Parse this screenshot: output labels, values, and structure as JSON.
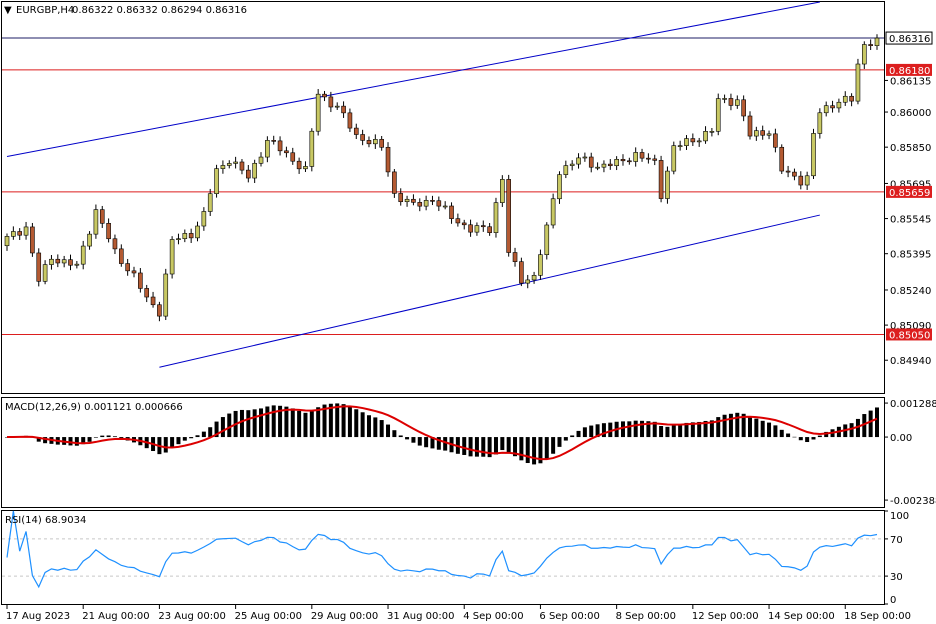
{
  "header": {
    "symbol_timeframe": "EURGBP,H4",
    "ohlc": "0.86322 0.86332 0.86294 0.86316"
  },
  "colors": {
    "bull": "#c8c864",
    "bear": "#b45a32",
    "candle_outline": "#000000",
    "channel": "#0000c8",
    "hline": "#dc1e1e",
    "bid_line": "#1e1e64",
    "macd_hist": "#000000",
    "macd_signal": "#dc0000",
    "rsi": "#1e90ff",
    "level_dash": "#c8c8c8"
  },
  "chart_data": [
    {
      "type": "candlestick",
      "title": "EURGBP,H4",
      "price_ticks": [
        "0.86180",
        "0.86135",
        "0.86000",
        "0.85850",
        "0.85695",
        "0.85659",
        "0.85545",
        "0.85395",
        "0.85240",
        "0.85090",
        "0.85050",
        "0.84940"
      ],
      "price_range": [
        0.848,
        0.8647
      ],
      "price_ticks_values": [
        0.86135,
        0.86,
        0.8585,
        0.85695,
        0.85545,
        0.85395,
        0.8524,
        0.8509,
        0.8494
      ],
      "current_price": {
        "label": "0.86316",
        "value": 0.86316
      },
      "horizontal_levels": [
        {
          "label": "0.86180",
          "value": 0.8618
        },
        {
          "label": "0.85659",
          "value": 0.85659
        },
        {
          "label": "0.85050",
          "value": 0.8505
        }
      ],
      "channel_lines": [
        {
          "from": {
            "bar": 0,
            "price": 0.8581
          },
          "to": {
            "bar": 128,
            "price": 0.8647
          }
        },
        {
          "from": {
            "bar": 24,
            "price": 0.8491
          },
          "to": {
            "bar": 128,
            "price": 0.8556
          }
        }
      ],
      "x_labels": [
        {
          "bar": 0,
          "label": "17 Aug 2023"
        },
        {
          "bar": 12,
          "label": "21 Aug 00:00"
        },
        {
          "bar": 24,
          "label": "23 Aug 00:00"
        },
        {
          "bar": 36,
          "label": "25 Aug 00:00"
        },
        {
          "bar": 48,
          "label": "29 Aug 00:00"
        },
        {
          "bar": 60,
          "label": "31 Aug 00:00"
        },
        {
          "bar": 72,
          "label": "4 Sep 00:00"
        },
        {
          "bar": 84,
          "label": "6 Sep 00:00"
        },
        {
          "bar": 96,
          "label": "8 Sep 00:00"
        },
        {
          "bar": 108,
          "label": "12 Sep 00:00"
        },
        {
          "bar": 120,
          "label": "14 Sep 00:00"
        },
        {
          "bar": 132,
          "label": "18 Sep 00:00"
        }
      ],
      "bar_count": 138,
      "anchors": [
        [
          0,
          0.8546
        ],
        [
          3,
          0.8551
        ],
        [
          5,
          0.8528
        ],
        [
          7,
          0.8538
        ],
        [
          11,
          0.8534
        ],
        [
          14,
          0.8558
        ],
        [
          17,
          0.854
        ],
        [
          20,
          0.853
        ],
        [
          22,
          0.852
        ],
        [
          24,
          0.8515
        ],
        [
          26,
          0.8545
        ],
        [
          29,
          0.8548
        ],
        [
          31,
          0.8556
        ],
        [
          33,
          0.8575
        ],
        [
          35,
          0.858
        ],
        [
          38,
          0.8572
        ],
        [
          41,
          0.8588
        ],
        [
          44,
          0.8582
        ],
        [
          47,
          0.8575
        ],
        [
          49,
          0.8608
        ],
        [
          52,
          0.8602
        ],
        [
          55,
          0.859
        ],
        [
          59,
          0.8585
        ],
        [
          61,
          0.8565
        ],
        [
          64,
          0.856
        ],
        [
          67,
          0.8563
        ],
        [
          70,
          0.8555
        ],
        [
          73,
          0.855
        ],
        [
          76,
          0.855
        ],
        [
          78,
          0.8572
        ],
        [
          79,
          0.854
        ],
        [
          81,
          0.8528
        ],
        [
          83,
          0.853
        ],
        [
          85,
          0.855
        ],
        [
          87,
          0.8575
        ],
        [
          90,
          0.858
        ],
        [
          93,
          0.8577
        ],
        [
          96,
          0.8578
        ],
        [
          99,
          0.8582
        ],
        [
          102,
          0.8578
        ],
        [
          103,
          0.8565
        ],
        [
          105,
          0.8585
        ],
        [
          108,
          0.8588
        ],
        [
          111,
          0.8592
        ],
        [
          112,
          0.8605
        ],
        [
          115,
          0.8605
        ],
        [
          117,
          0.859
        ],
        [
          120,
          0.8592
        ],
        [
          122,
          0.8575
        ],
        [
          125,
          0.8571
        ],
        [
          126,
          0.8572
        ],
        [
          127,
          0.859
        ],
        [
          128,
          0.86
        ],
        [
          131,
          0.8605
        ],
        [
          133,
          0.8605
        ],
        [
          134,
          0.862
        ],
        [
          135,
          0.8629
        ],
        [
          137,
          0.86316
        ]
      ]
    },
    {
      "type": "bar",
      "title": "MACD(12,26,9) 0.001121 0.000666",
      "ticks": [
        {
          "label": "0.001288",
          "value": 0.001288
        },
        {
          "label": "0.00",
          "value": 0.0
        },
        {
          "label": "-0.002388",
          "value": -0.002388
        }
      ],
      "range": [
        -0.00265,
        0.00148
      ],
      "signal": "red line smoothed from histogram"
    },
    {
      "type": "line",
      "title": "RSI(14) 68.9034",
      "ticks": [
        {
          "label": "100",
          "value": 100
        },
        {
          "label": "70",
          "value": 70
        },
        {
          "label": "30",
          "value": 30
        },
        {
          "label": "0",
          "value": 0
        }
      ],
      "range": [
        0,
        100
      ]
    }
  ]
}
